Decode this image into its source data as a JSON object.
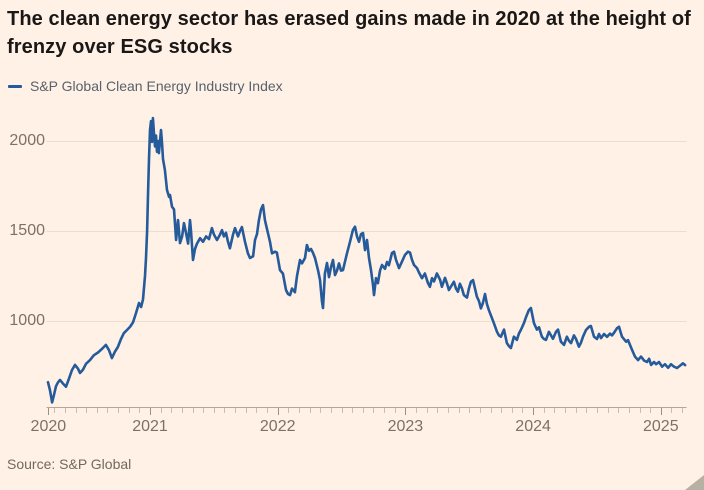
{
  "header": {
    "title": "The clean energy sector has erased gains made in 2020 at the height of frenzy over ESG stocks"
  },
  "legend": {
    "label": "S&P Global Clean Energy Industry Index"
  },
  "footer": {
    "source": "Source: S&P Global"
  },
  "colors": {
    "background": "#fff1e5",
    "line": "#255a9b",
    "gridline": "#ecdecd",
    "axis_baseline": "#b4a795",
    "tick_minor": "#cabdab",
    "tick_major": "#9c9082",
    "axis_label": "#7b7264",
    "title_text": "#1a1817",
    "legend_text": "#57626c",
    "source_text": "#72695f",
    "resize_grip": "#b9b0a4"
  },
  "chart_data": {
    "type": "line",
    "title": "The clean energy sector has erased gains made in 2020 at the height of frenzy over ESG stocks",
    "xlabel": "",
    "ylabel": "",
    "xlim": [
      2020.2,
      2025.2
    ],
    "ylim": [
      520,
      2175
    ],
    "grid": "horizontal",
    "legend_position": "top-left",
    "yticks": [
      {
        "value": 1000,
        "label": "1000"
      },
      {
        "value": 1500,
        "label": "1500"
      },
      {
        "value": 2000,
        "label": "2000"
      }
    ],
    "xticks": [
      {
        "year": 2020.204,
        "label": "2020"
      },
      {
        "year": 2021,
        "label": "2021"
      },
      {
        "year": 2022,
        "label": "2022"
      },
      {
        "year": 2023,
        "label": "2023"
      },
      {
        "year": 2024,
        "label": "2024"
      },
      {
        "year": 2025,
        "label": "2025"
      }
    ],
    "series": [
      {
        "name": "S&P Global Clean Energy Industry Index",
        "points": [
          [
            2020.201,
            660
          ],
          [
            2020.217,
            615
          ],
          [
            2020.233,
            548
          ],
          [
            2020.248,
            590
          ],
          [
            2020.264,
            638
          ],
          [
            2020.28,
            660
          ],
          [
            2020.295,
            672
          ],
          [
            2020.319,
            652
          ],
          [
            2020.342,
            635
          ],
          [
            2020.366,
            680
          ],
          [
            2020.389,
            728
          ],
          [
            2020.413,
            756
          ],
          [
            2020.436,
            735
          ],
          [
            2020.452,
            711
          ],
          [
            2020.475,
            730
          ],
          [
            2020.499,
            762
          ],
          [
            2020.53,
            783
          ],
          [
            2020.561,
            810
          ],
          [
            2020.593,
            825
          ],
          [
            2020.624,
            845
          ],
          [
            2020.655,
            867
          ],
          [
            2020.679,
            838
          ],
          [
            2020.702,
            794
          ],
          [
            2020.726,
            830
          ],
          [
            2020.749,
            856
          ],
          [
            2020.773,
            900
          ],
          [
            2020.796,
            933
          ],
          [
            2020.82,
            950
          ],
          [
            2020.843,
            967
          ],
          [
            2020.867,
            992
          ],
          [
            2020.89,
            1044
          ],
          [
            2020.914,
            1100
          ],
          [
            2020.93,
            1078
          ],
          [
            2020.945,
            1120
          ],
          [
            2020.961,
            1250
          ],
          [
            2020.969,
            1350
          ],
          [
            2020.977,
            1500
          ],
          [
            2020.984,
            1700
          ],
          [
            2020.992,
            1900
          ],
          [
            2021.0,
            2060
          ],
          [
            2021.008,
            2110
          ],
          [
            2021.016,
            1995
          ],
          [
            2021.023,
            2128
          ],
          [
            2021.031,
            2040
          ],
          [
            2021.039,
            1970
          ],
          [
            2021.047,
            2030
          ],
          [
            2021.055,
            1940
          ],
          [
            2021.063,
            2000
          ],
          [
            2021.07,
            1933
          ],
          [
            2021.078,
            2000
          ],
          [
            2021.086,
            2061
          ],
          [
            2021.094,
            1990
          ],
          [
            2021.102,
            1900
          ],
          [
            2021.117,
            1839
          ],
          [
            2021.133,
            1728
          ],
          [
            2021.149,
            1690
          ],
          [
            2021.157,
            1700
          ],
          [
            2021.172,
            1635
          ],
          [
            2021.188,
            1620
          ],
          [
            2021.204,
            1450
          ],
          [
            2021.219,
            1561
          ],
          [
            2021.235,
            1433
          ],
          [
            2021.251,
            1470
          ],
          [
            2021.266,
            1544
          ],
          [
            2021.282,
            1490
          ],
          [
            2021.298,
            1430
          ],
          [
            2021.313,
            1561
          ],
          [
            2021.321,
            1500
          ],
          [
            2021.337,
            1339
          ],
          [
            2021.352,
            1400
          ],
          [
            2021.368,
            1430
          ],
          [
            2021.392,
            1460
          ],
          [
            2021.415,
            1440
          ],
          [
            2021.439,
            1470
          ],
          [
            2021.462,
            1455
          ],
          [
            2021.485,
            1516
          ],
          [
            2021.501,
            1480
          ],
          [
            2021.525,
            1450
          ],
          [
            2021.548,
            1480
          ],
          [
            2021.564,
            1505
          ],
          [
            2021.579,
            1470
          ],
          [
            2021.595,
            1490
          ],
          [
            2021.611,
            1440
          ],
          [
            2021.626,
            1404
          ],
          [
            2021.65,
            1480
          ],
          [
            2021.666,
            1516
          ],
          [
            2021.689,
            1470
          ],
          [
            2021.705,
            1500
          ],
          [
            2021.72,
            1522
          ],
          [
            2021.744,
            1440
          ],
          [
            2021.767,
            1376
          ],
          [
            2021.783,
            1350
          ],
          [
            2021.807,
            1360
          ],
          [
            2021.822,
            1450
          ],
          [
            2021.838,
            1483
          ],
          [
            2021.853,
            1560
          ],
          [
            2021.869,
            1620
          ],
          [
            2021.885,
            1644
          ],
          [
            2021.9,
            1561
          ],
          [
            2021.924,
            1487
          ],
          [
            2021.94,
            1440
          ],
          [
            2021.955,
            1376
          ],
          [
            2021.979,
            1385
          ],
          [
            2021.994,
            1380
          ],
          [
            2022.018,
            1283
          ],
          [
            2022.041,
            1264
          ],
          [
            2022.065,
            1172
          ],
          [
            2022.081,
            1150
          ],
          [
            2022.096,
            1144
          ],
          [
            2022.112,
            1180
          ],
          [
            2022.135,
            1160
          ],
          [
            2022.151,
            1250
          ],
          [
            2022.175,
            1339
          ],
          [
            2022.19,
            1320
          ],
          [
            2022.214,
            1350
          ],
          [
            2022.229,
            1422
          ],
          [
            2022.245,
            1390
          ],
          [
            2022.261,
            1400
          ],
          [
            2022.276,
            1380
          ],
          [
            2022.292,
            1350
          ],
          [
            2022.316,
            1280
          ],
          [
            2022.331,
            1228
          ],
          [
            2022.347,
            1107
          ],
          [
            2022.355,
            1072
          ],
          [
            2022.37,
            1264
          ],
          [
            2022.386,
            1322
          ],
          [
            2022.402,
            1244
          ],
          [
            2022.417,
            1300
          ],
          [
            2022.433,
            1339
          ],
          [
            2022.449,
            1255
          ],
          [
            2022.464,
            1280
          ],
          [
            2022.48,
            1320
          ],
          [
            2022.496,
            1280
          ],
          [
            2022.511,
            1283
          ],
          [
            2022.527,
            1330
          ],
          [
            2022.543,
            1376
          ],
          [
            2022.566,
            1440
          ],
          [
            2022.589,
            1505
          ],
          [
            2022.605,
            1524
          ],
          [
            2022.621,
            1470
          ],
          [
            2022.637,
            1440
          ],
          [
            2022.652,
            1483
          ],
          [
            2022.668,
            1489
          ],
          [
            2022.684,
            1394
          ],
          [
            2022.699,
            1450
          ],
          [
            2022.715,
            1350
          ],
          [
            2022.731,
            1283
          ],
          [
            2022.746,
            1200
          ],
          [
            2022.754,
            1144
          ],
          [
            2022.77,
            1238
          ],
          [
            2022.785,
            1210
          ],
          [
            2022.801,
            1280
          ],
          [
            2022.817,
            1311
          ],
          [
            2022.84,
            1290
          ],
          [
            2022.856,
            1328
          ],
          [
            2022.871,
            1310
          ],
          [
            2022.895,
            1378
          ],
          [
            2022.911,
            1385
          ],
          [
            2022.926,
            1340
          ],
          [
            2022.95,
            1294
          ],
          [
            2022.973,
            1330
          ],
          [
            2022.997,
            1367
          ],
          [
            2023.02,
            1385
          ],
          [
            2023.036,
            1380
          ],
          [
            2023.052,
            1340
          ],
          [
            2023.067,
            1311
          ],
          [
            2023.091,
            1294
          ],
          [
            2023.106,
            1270
          ],
          [
            2023.13,
            1238
          ],
          [
            2023.153,
            1264
          ],
          [
            2023.177,
            1210
          ],
          [
            2023.192,
            1190
          ],
          [
            2023.208,
            1238
          ],
          [
            2023.224,
            1220
          ],
          [
            2023.247,
            1264
          ],
          [
            2023.271,
            1230
          ],
          [
            2023.286,
            1190
          ],
          [
            2023.31,
            1240
          ],
          [
            2023.325,
            1210
          ],
          [
            2023.341,
            1172
          ],
          [
            2023.364,
            1200
          ],
          [
            2023.38,
            1218
          ],
          [
            2023.396,
            1180
          ],
          [
            2023.411,
            1163
          ],
          [
            2023.427,
            1207
          ],
          [
            2023.443,
            1180
          ],
          [
            2023.458,
            1144
          ],
          [
            2023.482,
            1130
          ],
          [
            2023.497,
            1180
          ],
          [
            2023.513,
            1218
          ],
          [
            2023.529,
            1227
          ],
          [
            2023.545,
            1180
          ],
          [
            2023.56,
            1135
          ],
          [
            2023.576,
            1110
          ],
          [
            2023.591,
            1070
          ],
          [
            2023.607,
            1100
          ],
          [
            2023.623,
            1150
          ],
          [
            2023.638,
            1095
          ],
          [
            2023.654,
            1060
          ],
          [
            2023.67,
            1030
          ],
          [
            2023.693,
            988
          ],
          [
            2023.717,
            940
          ],
          [
            2023.732,
            920
          ],
          [
            2023.748,
            913
          ],
          [
            2023.772,
            952
          ],
          [
            2023.795,
            877
          ],
          [
            2023.811,
            860
          ],
          [
            2023.826,
            850
          ],
          [
            2023.85,
            913
          ],
          [
            2023.873,
            895
          ],
          [
            2023.889,
            930
          ],
          [
            2023.905,
            952
          ],
          [
            2023.928,
            988
          ],
          [
            2023.944,
            1020
          ],
          [
            2023.967,
            1061
          ],
          [
            2023.983,
            1072
          ],
          [
            2024.007,
            988
          ],
          [
            2024.03,
            952
          ],
          [
            2024.046,
            965
          ],
          [
            2024.069,
            913
          ],
          [
            2024.085,
            900
          ],
          [
            2024.101,
            895
          ],
          [
            2024.124,
            940
          ],
          [
            2024.14,
            920
          ],
          [
            2024.156,
            901
          ],
          [
            2024.179,
            940
          ],
          [
            2024.195,
            952
          ],
          [
            2024.218,
            885
          ],
          [
            2024.242,
            867
          ],
          [
            2024.265,
            913
          ],
          [
            2024.281,
            890
          ],
          [
            2024.297,
            877
          ],
          [
            2024.32,
            920
          ],
          [
            2024.336,
            900
          ],
          [
            2024.359,
            857
          ],
          [
            2024.375,
            880
          ],
          [
            2024.391,
            913
          ],
          [
            2024.414,
            950
          ],
          [
            2024.438,
            968
          ],
          [
            2024.453,
            972
          ],
          [
            2024.477,
            913
          ],
          [
            2024.5,
            900
          ],
          [
            2024.516,
            928
          ],
          [
            2024.532,
            905
          ],
          [
            2024.555,
            928
          ],
          [
            2024.579,
            912
          ],
          [
            2024.602,
            930
          ],
          [
            2024.618,
            920
          ],
          [
            2024.634,
            935
          ],
          [
            2024.657,
            960
          ],
          [
            2024.673,
            968
          ],
          [
            2024.696,
            913
          ],
          [
            2024.728,
            885
          ],
          [
            2024.743,
            894
          ],
          [
            2024.775,
            839
          ],
          [
            2024.798,
            802
          ],
          [
            2024.822,
            783
          ],
          [
            2024.845,
            802
          ],
          [
            2024.869,
            780
          ],
          [
            2024.892,
            772
          ],
          [
            2024.908,
            790
          ],
          [
            2024.924,
            756
          ],
          [
            2024.947,
            772
          ],
          [
            2024.963,
            760
          ],
          [
            2024.986,
            772
          ],
          [
            2025.01,
            746
          ],
          [
            2025.033,
            760
          ],
          [
            2025.057,
            740
          ],
          [
            2025.08,
            760
          ],
          [
            2025.104,
            746
          ],
          [
            2025.127,
            739
          ],
          [
            2025.151,
            752
          ],
          [
            2025.174,
            765
          ],
          [
            2025.19,
            755
          ]
        ]
      }
    ]
  }
}
